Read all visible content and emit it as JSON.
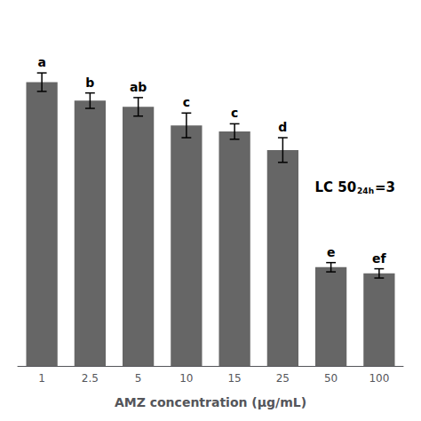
{
  "chart_data": {
    "type": "bar",
    "xlabel": "AMZ concentration (μg/mL)",
    "categories": [
      "1",
      "2.5",
      "5",
      "10",
      "15",
      "25",
      "50",
      "100"
    ],
    "values": [
      0.92,
      0.86,
      0.84,
      0.78,
      0.76,
      0.7,
      0.32,
      0.3
    ],
    "errors": [
      0.03,
      0.025,
      0.03,
      0.04,
      0.025,
      0.04,
      0.015,
      0.015
    ],
    "labels": [
      "a",
      "b",
      "ab",
      "c",
      "c",
      "d",
      "e",
      "ef"
    ],
    "annotation": [
      "LC 50",
      "24h",
      "=3"
    ],
    "color": "#666666",
    "ylim": [
      0,
      1.1
    ],
    "tick_labels": "x",
    "grid": false
  }
}
